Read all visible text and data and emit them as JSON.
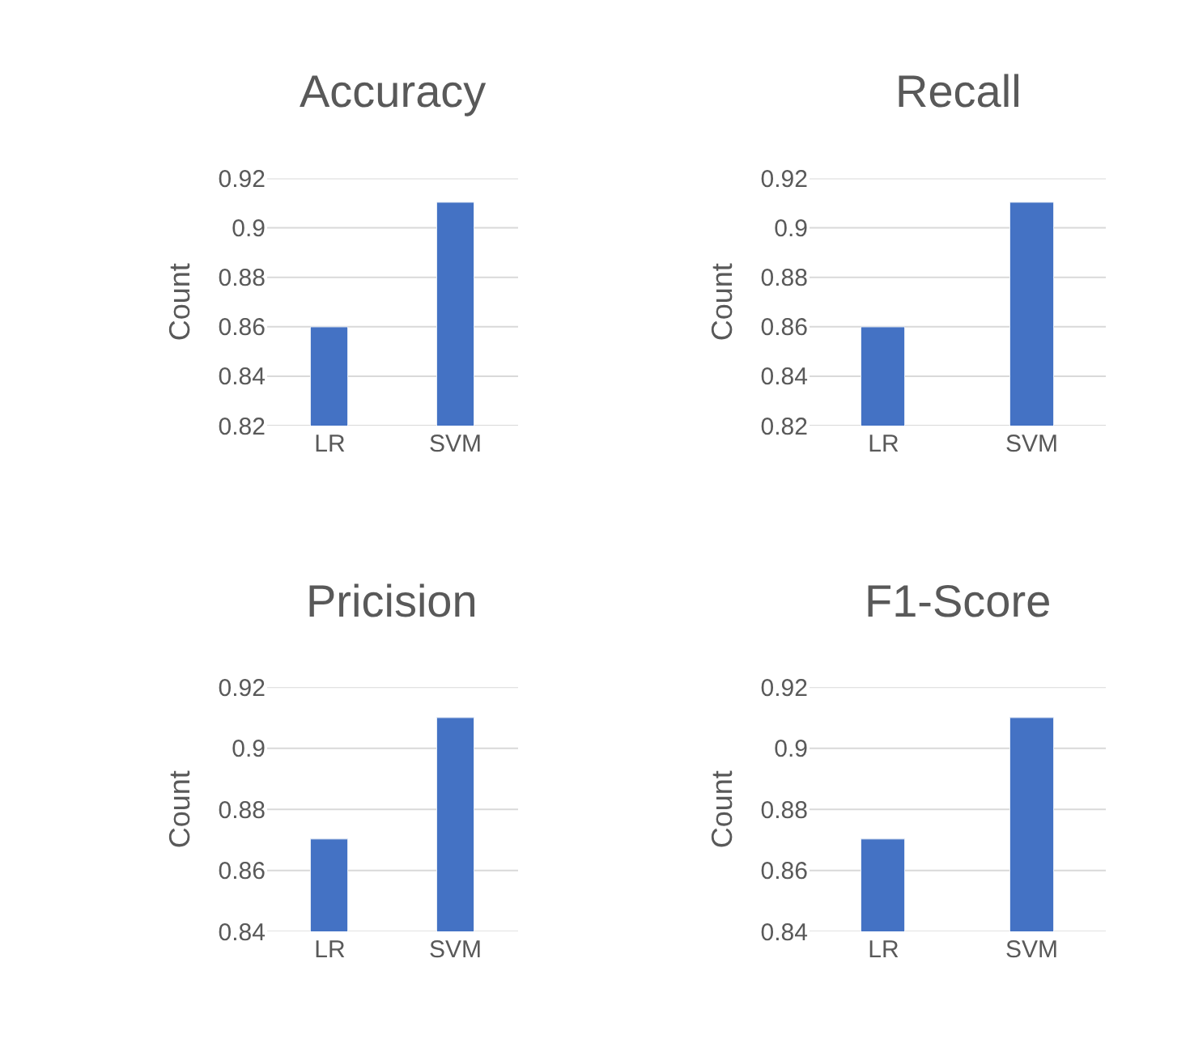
{
  "chart_data": [
    {
      "type": "bar",
      "title": "Accuracy",
      "ylabel": "Count",
      "categories": [
        "LR",
        "SVM"
      ],
      "values": [
        0.86,
        0.91
      ],
      "color": "#4472c4",
      "ylim": [
        0.82,
        0.92
      ],
      "yticks": [
        0.82,
        0.84,
        0.86,
        0.88,
        0.9,
        0.92
      ],
      "grid": "y"
    },
    {
      "type": "bar",
      "title": "Recall",
      "ylabel": "Count",
      "categories": [
        "LR",
        "SVM"
      ],
      "values": [
        0.86,
        0.91
      ],
      "color": "#4472c4",
      "ylim": [
        0.82,
        0.92
      ],
      "yticks": [
        0.82,
        0.84,
        0.86,
        0.88,
        0.9,
        0.92
      ],
      "grid": "y"
    },
    {
      "type": "bar",
      "title": "Pricision",
      "ylabel": "Count",
      "categories": [
        "LR",
        "SVM"
      ],
      "values": [
        0.87,
        0.91
      ],
      "color": "#4472c4",
      "ylim": [
        0.84,
        0.92
      ],
      "yticks": [
        0.84,
        0.86,
        0.88,
        0.9,
        0.92
      ],
      "grid": "y"
    },
    {
      "type": "bar",
      "title": "F1-Score",
      "ylabel": "Count",
      "categories": [
        "LR",
        "SVM"
      ],
      "values": [
        0.87,
        0.91
      ],
      "color": "#4472c4",
      "ylim": [
        0.84,
        0.92
      ],
      "yticks": [
        0.84,
        0.86,
        0.88,
        0.9,
        0.92
      ],
      "grid": "y"
    }
  ]
}
